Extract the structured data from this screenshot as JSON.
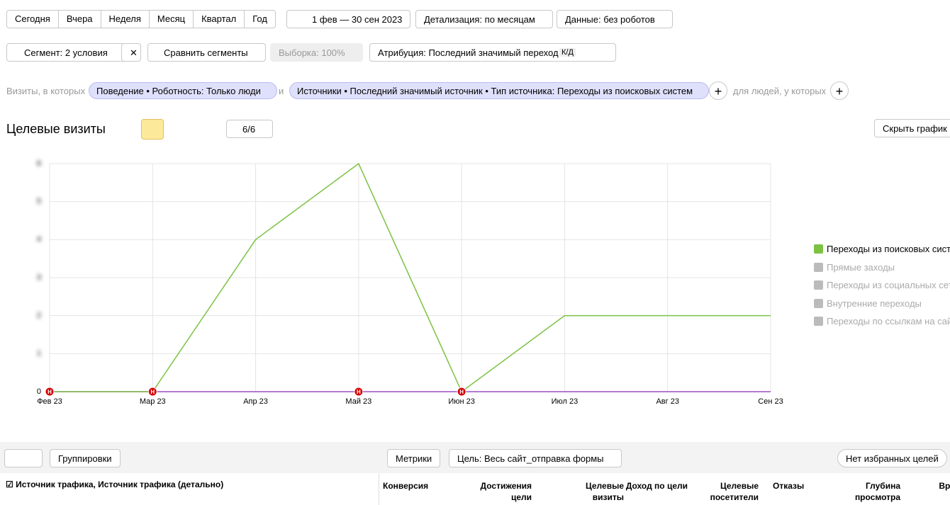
{
  "toolbar": {
    "periods": [
      "Сегодня",
      "Вчера",
      "Неделя",
      "Месяц",
      "Квартал",
      "Год"
    ],
    "date_range": "1 фев — 30 сен 2023",
    "detail": "Детализация: по месяцам",
    "data_filter": "Данные: без роботов"
  },
  "segment_bar": {
    "segment": "Сегмент: 2 условия",
    "compare": "Сравнить сегменты",
    "sample": "Выборка: 100%",
    "attribution": "Атрибуция: Последний значимый переход",
    "attribution_badge": "К/Д"
  },
  "filters": {
    "prefix": "Визиты, в которых",
    "chip1": "Поведение • Роботность: Только люди",
    "joiner": "и",
    "chip2": "Источники • Последний значимый источник • Тип источника: Переходы из поисковых систем",
    "suffix": "для людей, у которых"
  },
  "chart_header": {
    "title": "Целевые визиты",
    "series_count": "6/6",
    "hide_button": "Скрыть график"
  },
  "chart_data": {
    "type": "line",
    "categories": [
      "Фев 23",
      "Мар 23",
      "Апр 23",
      "Май 23",
      "Июн 23",
      "Июл 23",
      "Авг 23",
      "Сен 23"
    ],
    "series": [
      {
        "name": "Переходы из поисковых систем",
        "color": "#7cc243",
        "values": [
          0,
          0,
          4,
          6,
          0,
          2,
          2,
          2
        ]
      }
    ],
    "ylim": [
      0,
      6
    ],
    "yticks": [
      0,
      1,
      2,
      3,
      4,
      5,
      6
    ],
    "grid": true,
    "markers": [
      {
        "at": 0,
        "label": "Н"
      },
      {
        "at": 1,
        "label": "Н"
      },
      {
        "at": 3,
        "label": "Н"
      },
      {
        "at": 4,
        "label": "Н"
      }
    ],
    "legend_inactive": [
      "Прямые заходы",
      "Переходы из социальных сетей",
      "Внутренние переходы",
      "Переходы по ссылкам на сайтах"
    ]
  },
  "table": {
    "groupings": "Группировки",
    "metrics": "Метрики",
    "goal": "Цель: Весь сайт_отправка формы",
    "favorites": "Нет избранных целей",
    "dimension": "Источник трафика, Источник трафика (детально)",
    "columns": [
      "Конверсия",
      "Достижения цели",
      "Целевые визиты",
      "Доход по цели",
      "Целевые посетители",
      "Отказы",
      "Глубина просмотра",
      "Время на сайте"
    ]
  }
}
